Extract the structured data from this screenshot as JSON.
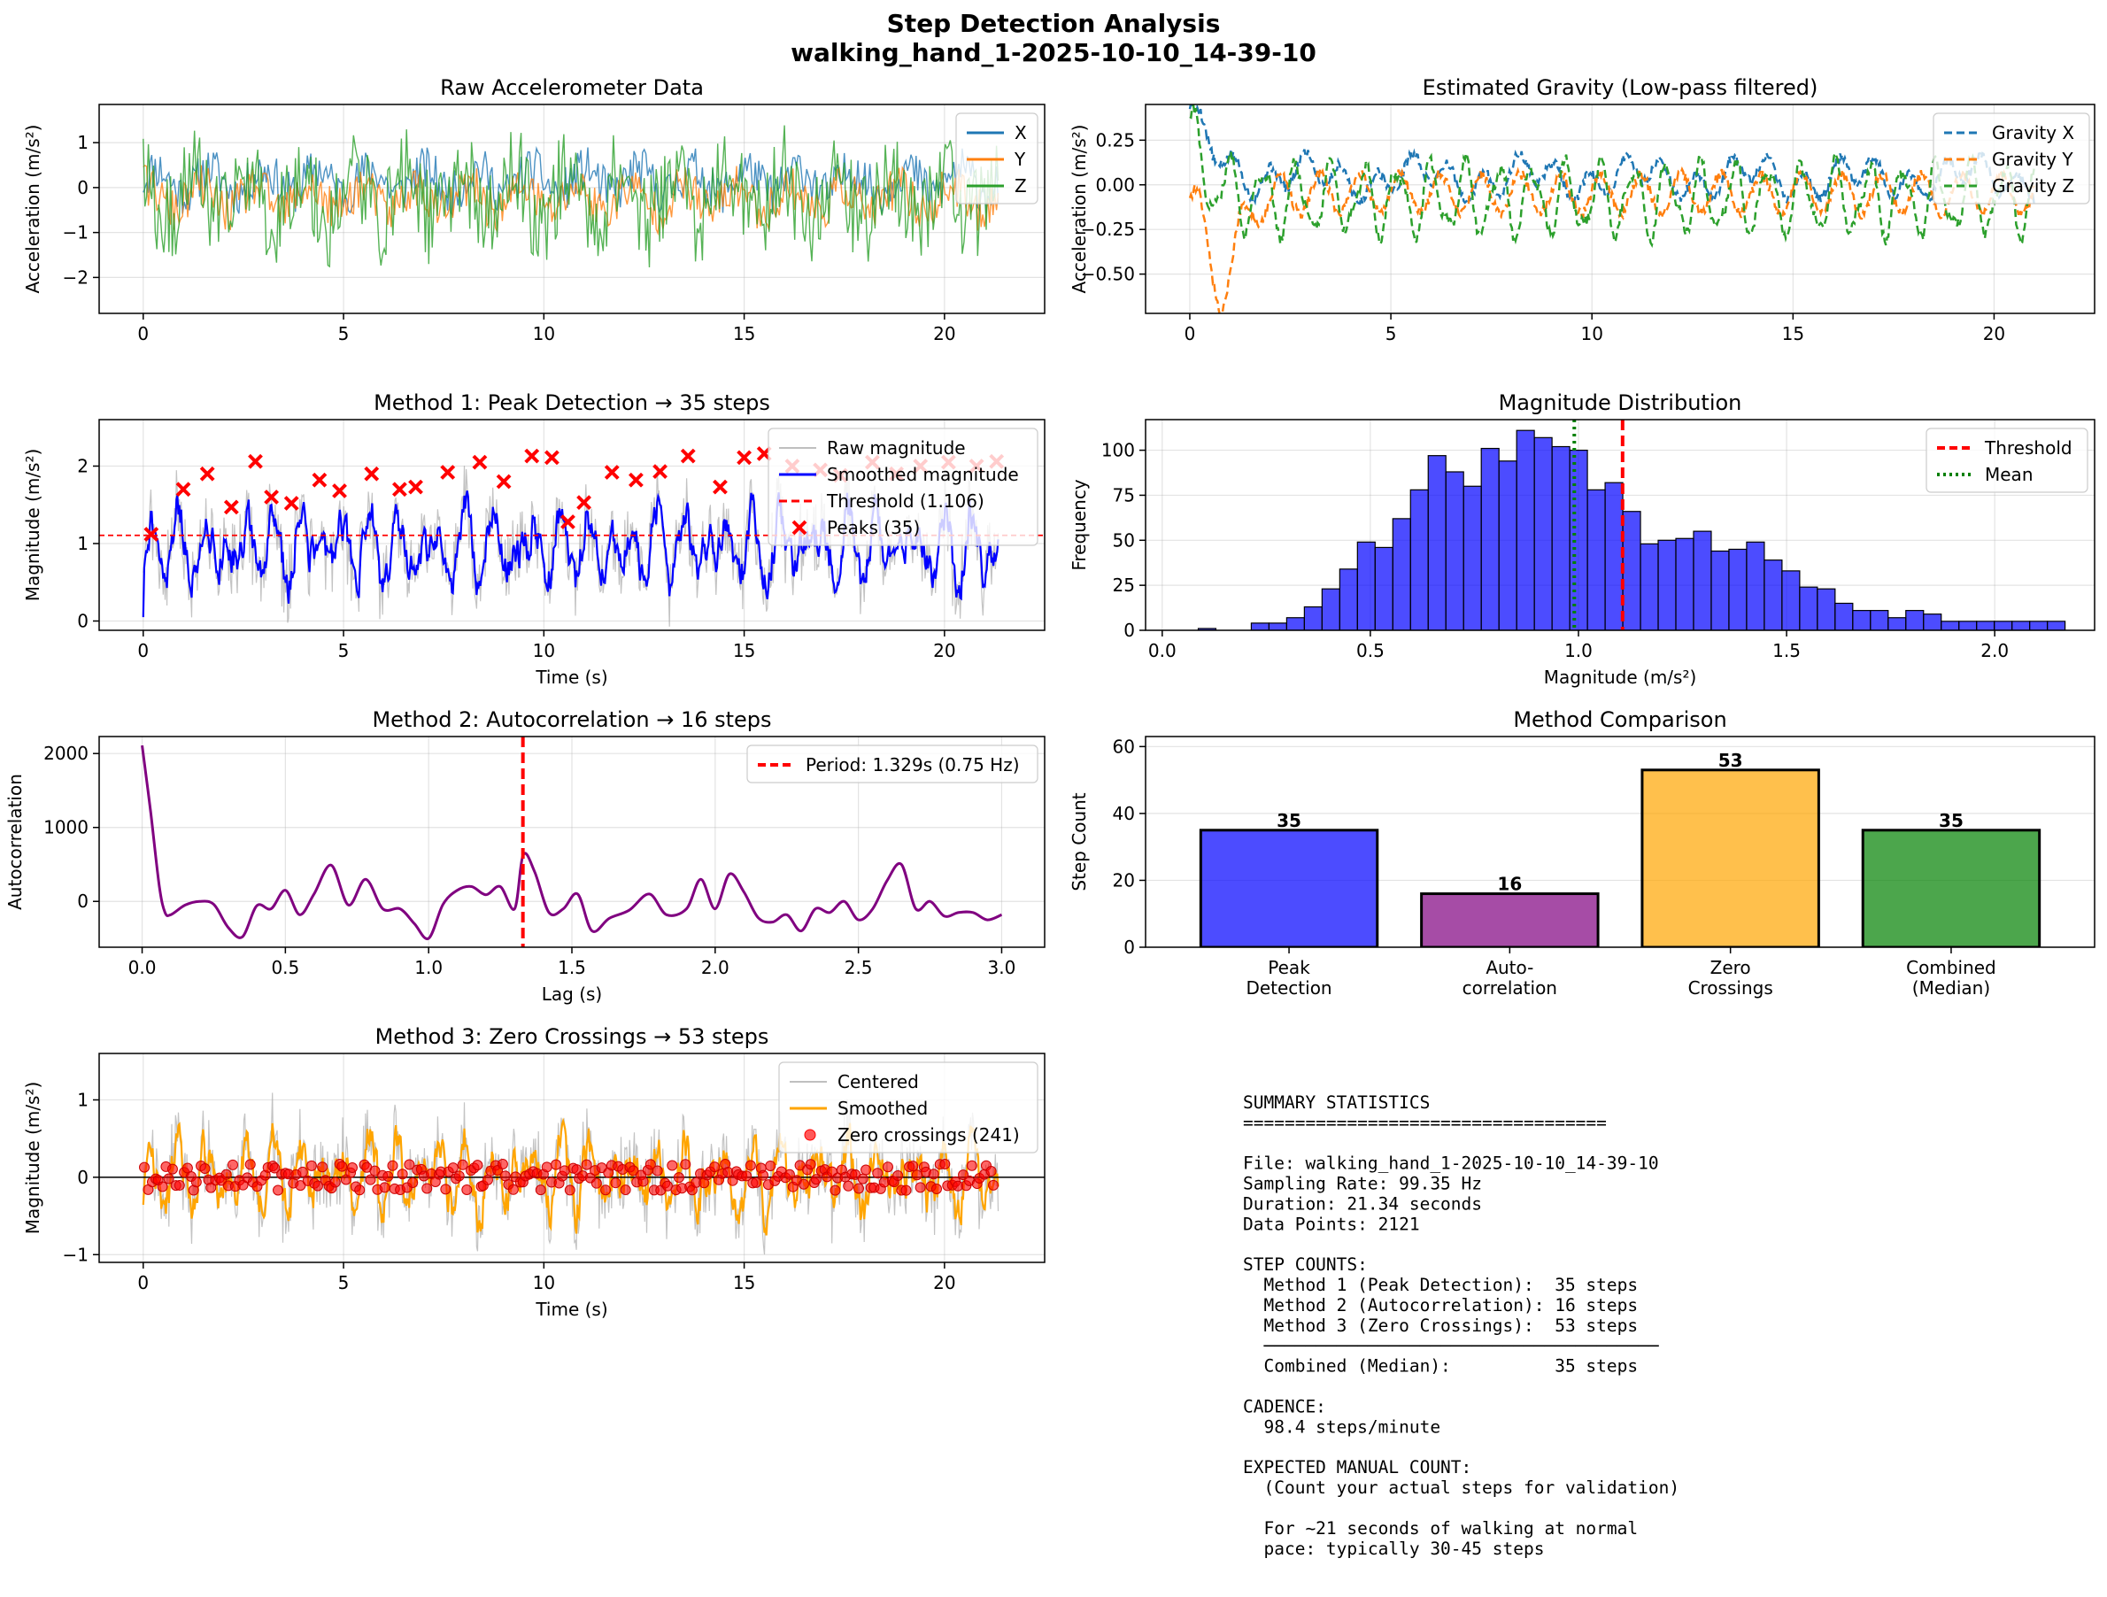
{
  "figure": {
    "title_line1": "Step Detection Analysis",
    "title_line2": "walking_hand_1-2025-10-10_14-39-10"
  },
  "colors": {
    "x": "#1f77b4",
    "y": "#ff7f0e",
    "z": "#2ca02c",
    "blue": "#0000ff",
    "red": "#ff0000",
    "purple": "#800080",
    "orange": "#ffa500",
    "green": "#008000",
    "gray": "#aaaaaa"
  },
  "chart_data": [
    {
      "id": "raw",
      "type": "line",
      "title": "Raw Accelerometer Data",
      "xlabel": "",
      "ylabel": "Acceleration (m/s²)",
      "xlim": [
        -1.1,
        22.5
      ],
      "ylim": [
        -2.8,
        1.85
      ],
      "xticks": [
        0,
        5,
        10,
        15,
        20
      ],
      "yticks": [
        -2,
        -1,
        0,
        1
      ],
      "duration": 21.34,
      "legend_position": "upper-right",
      "series": [
        {
          "name": "X",
          "color": "#1f77b4",
          "amplitude": 0.55,
          "center": 0.15,
          "samples": 500
        },
        {
          "name": "Y",
          "color": "#ff7f0e",
          "amplitude": 0.55,
          "center": -0.25,
          "samples": 500
        },
        {
          "name": "Z",
          "color": "#2ca02c",
          "amplitude": 1.15,
          "center": -0.2,
          "samples": 500
        }
      ]
    },
    {
      "id": "gravity",
      "type": "line",
      "title": "Estimated Gravity (Low-pass filtered)",
      "xlabel": "",
      "ylabel": "Acceleration (m/s²)",
      "xlim": [
        -1.1,
        22.5
      ],
      "ylim": [
        -0.72,
        0.45
      ],
      "xticks": [
        0,
        5,
        10,
        15,
        20
      ],
      "yticks": [
        -0.5,
        -0.25,
        0.0,
        0.25
      ],
      "duration": 21.0,
      "legend_position": "upper-right",
      "series": [
        {
          "name": "Gravity X",
          "color": "#1f77b4",
          "dashed": true
        },
        {
          "name": "Gravity Y",
          "color": "#ff7f0e",
          "dashed": true
        },
        {
          "name": "Gravity Z",
          "color": "#2ca02c",
          "dashed": true
        }
      ]
    },
    {
      "id": "peaks",
      "type": "line",
      "title": "Method 1: Peak Detection → 35 steps",
      "xlabel": "Time (s)",
      "ylabel": "Magnitude (m/s²)",
      "xlim": [
        -1.1,
        22.5
      ],
      "ylim": [
        -0.12,
        2.6
      ],
      "xticks": [
        0,
        5,
        10,
        15,
        20
      ],
      "yticks": [
        0,
        1,
        2
      ],
      "threshold": 1.106,
      "legend_position": "upper-right",
      "series": [
        {
          "name": "Raw magnitude",
          "color": "#aaaaaa"
        },
        {
          "name": "Smoothed magnitude",
          "color": "#0000ff"
        },
        {
          "name": "Threshold (1.106)",
          "color": "#ff0000",
          "dashed": true
        },
        {
          "name": "Peaks (35)",
          "color": "#ff0000",
          "marker": "x"
        }
      ],
      "peaks_x": [
        0.2,
        1.0,
        1.6,
        2.2,
        2.8,
        3.2,
        3.7,
        4.4,
        4.9,
        5.7,
        6.4,
        6.8,
        7.6,
        8.4,
        9.0,
        9.7,
        10.2,
        10.6,
        11.0,
        11.7,
        12.3,
        12.9,
        13.6,
        14.4,
        15.0,
        15.5,
        16.2,
        16.9,
        17.4,
        18.2,
        18.8,
        19.4,
        20.1,
        20.8,
        21.3
      ],
      "peaks_y": [
        1.12,
        1.7,
        1.9,
        1.47,
        2.06,
        1.6,
        1.52,
        1.82,
        1.68,
        1.9,
        1.7,
        1.73,
        1.92,
        2.05,
        1.8,
        2.13,
        2.11,
        1.28,
        1.53,
        1.92,
        1.82,
        1.93,
        2.13,
        1.73,
        2.11,
        2.16,
        2.0,
        1.95,
        1.88,
        2.05,
        1.9,
        2.0,
        2.05,
        2.0,
        2.06
      ]
    },
    {
      "id": "hist",
      "type": "bar",
      "title": "Magnitude Distribution",
      "xlabel": "Magnitude (m/s²)",
      "ylabel": "Frequency",
      "xlim": [
        -0.04,
        2.24
      ],
      "ylim": [
        0,
        117
      ],
      "xticks": [
        0.0,
        0.5,
        1.0,
        1.5,
        2.0
      ],
      "yticks": [
        0,
        25,
        50,
        75,
        100
      ],
      "bin_start": 0.044,
      "bin_width": 0.0425,
      "values": [
        0,
        1,
        0,
        0,
        4,
        4,
        7,
        13,
        23,
        34,
        49,
        46,
        62,
        78,
        97,
        88,
        80,
        101,
        94,
        111,
        107,
        102,
        100,
        78,
        82,
        66,
        48,
        50,
        51,
        55,
        44,
        45,
        49,
        39,
        33,
        24,
        23,
        15,
        11,
        11,
        7,
        11,
        9,
        5,
        5,
        5,
        5,
        5,
        5,
        5
      ],
      "threshold": 1.106,
      "mean": 0.99,
      "legend_position": "upper-right",
      "series": [
        {
          "name": "Threshold",
          "color": "#ff0000",
          "dashed": true
        },
        {
          "name": "Mean",
          "color": "#008000",
          "dotted": true
        }
      ]
    },
    {
      "id": "autocorr",
      "type": "line",
      "title": "Method 2: Autocorrelation → 16 steps",
      "xlabel": "Lag (s)",
      "ylabel": "Autocorrelation",
      "xlim": [
        -0.15,
        3.15
      ],
      "ylim": [
        -620,
        2230
      ],
      "xticks": [
        0.0,
        0.5,
        1.0,
        1.5,
        2.0,
        2.5,
        3.0
      ],
      "xtick_labels": [
        "0.0",
        "0.5",
        "1.0",
        "1.5",
        "2.0",
        "2.5",
        "3.0"
      ],
      "yticks": [
        0,
        1000,
        2000
      ],
      "period": 1.329,
      "legend_position": "upper-right",
      "series": [
        {
          "name": "Period: 1.329s (0.75 Hz)",
          "color": "#ff0000",
          "dashed": true
        }
      ],
      "knots_x": [
        0.0,
        0.03,
        0.06,
        0.08,
        0.1,
        0.15,
        0.2,
        0.25,
        0.3,
        0.35,
        0.4,
        0.45,
        0.5,
        0.55,
        0.6,
        0.66,
        0.72,
        0.78,
        0.84,
        0.9,
        0.95,
        1.0,
        1.05,
        1.1,
        1.15,
        1.2,
        1.25,
        1.3,
        1.33,
        1.37,
        1.42,
        1.47,
        1.52,
        1.57,
        1.63,
        1.7,
        1.77,
        1.83,
        1.9,
        1.95,
        2.0,
        2.05,
        2.1,
        2.15,
        2.2,
        2.25,
        2.3,
        2.35,
        2.4,
        2.45,
        2.5,
        2.55,
        2.6,
        2.65,
        2.7,
        2.75,
        2.8,
        2.85,
        2.9,
        2.95,
        3.0
      ],
      "knots_y": [
        2110,
        1200,
        200,
        -150,
        -180,
        -50,
        0,
        -40,
        -350,
        -480,
        -60,
        -100,
        150,
        -180,
        100,
        490,
        -50,
        300,
        -100,
        -100,
        -300,
        -500,
        -40,
        150,
        200,
        90,
        200,
        -100,
        630,
        400,
        -150,
        -100,
        100,
        -400,
        -230,
        -120,
        100,
        -180,
        -100,
        300,
        -100,
        370,
        130,
        -220,
        -280,
        -180,
        -400,
        -100,
        -150,
        0,
        -250,
        -100,
        280,
        500,
        -100,
        0,
        -200,
        -150,
        -150,
        -250,
        -180
      ]
    },
    {
      "id": "compare",
      "type": "bar",
      "title": "Method Comparison",
      "xlabel": "",
      "ylabel": "Step Count",
      "ylim": [
        0,
        63
      ],
      "yticks": [
        0,
        20,
        40,
        60
      ],
      "categories": [
        [
          "Peak",
          "Detection"
        ],
        [
          "Auto-",
          "correlation"
        ],
        [
          "Zero",
          "Crossings"
        ],
        [
          "Combined",
          "(Median)"
        ]
      ],
      "values": [
        35,
        16,
        53,
        35
      ],
      "value_labels": [
        "35",
        "16",
        "53",
        "35"
      ],
      "bar_colors": [
        "#0000ff",
        "#800080",
        "#ffa500",
        "#008000"
      ]
    },
    {
      "id": "zero",
      "type": "line",
      "title": "Method 3: Zero Crossings → 53 steps",
      "xlabel": "Time (s)",
      "ylabel": "Magnitude (m/s²)",
      "xlim": [
        -1.1,
        22.5
      ],
      "ylim": [
        -1.1,
        1.6
      ],
      "xticks": [
        0,
        5,
        10,
        15,
        20
      ],
      "yticks": [
        -1,
        0,
        1
      ],
      "legend_position": "upper-right",
      "series": [
        {
          "name": "Centered",
          "color": "#aaaaaa"
        },
        {
          "name": "Smoothed",
          "color": "#ffa500"
        },
        {
          "name": "Zero crossings (241)",
          "color": "#ff0000",
          "marker": "o"
        }
      ],
      "crossings": 241
    }
  ],
  "summary": {
    "lines": [
      "SUMMARY STATISTICS",
      "===================================",
      "",
      "File: walking_hand_1-2025-10-10_14-39-10",
      "Sampling Rate: 99.35 Hz",
      "Duration: 21.34 seconds",
      "Data Points: 2121",
      "",
      "STEP COUNTS:",
      "  Method 1 (Peak Detection):  35 steps",
      "  Method 2 (Autocorrelation): 16 steps",
      "  Method 3 (Zero Crossings):  53 steps",
      "  ──────────────────────────────────────",
      "  Combined (Median):          35 steps",
      "",
      "CADENCE:",
      "  98.4 steps/minute",
      "",
      "EXPECTED MANUAL COUNT:",
      "  (Count your actual steps for validation)",
      "",
      "  For ~21 seconds of walking at normal",
      "  pace: typically 30-45 steps"
    ]
  }
}
